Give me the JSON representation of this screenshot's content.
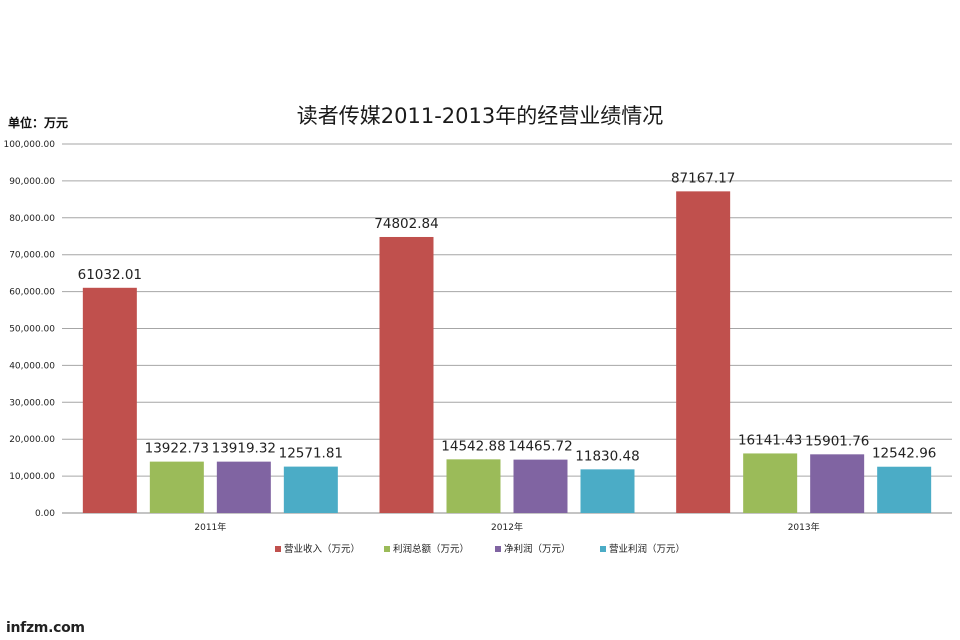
{
  "watermark": "infzm.com",
  "chart_data": {
    "type": "bar",
    "title": "读者传媒2011-2013年的经营业绩情况",
    "unit_label": "单位：万元",
    "categories": [
      "2011年",
      "2012年",
      "2013年"
    ],
    "series": [
      {
        "name": "营业收入（万元）",
        "color": "#c0504d",
        "values": [
          61032.01,
          74802.84,
          87167.17
        ],
        "labels": [
          "61032.01",
          "74802.84",
          "87167.17"
        ]
      },
      {
        "name": "利润总额（万元）",
        "color": "#9bbb59",
        "values": [
          13922.73,
          14542.88,
          16141.43
        ],
        "labels": [
          "13922.73",
          "14542.88",
          "16141.43"
        ]
      },
      {
        "name": "净利润（万元）",
        "color": "#8064a2",
        "values": [
          13919.32,
          14465.72,
          15901.76
        ],
        "labels": [
          "13919.32",
          "14465.72",
          "15901.76"
        ]
      },
      {
        "name": "营业利润（万元）",
        "color": "#4bacc6",
        "values": [
          12571.81,
          11830.48,
          12542.96
        ],
        "labels": [
          "12571.81",
          "11830.48",
          "12542.96"
        ]
      }
    ],
    "ylim": [
      0,
      100000
    ],
    "yticks": [
      0,
      10000,
      20000,
      30000,
      40000,
      50000,
      60000,
      70000,
      80000,
      90000,
      100000
    ],
    "ytick_labels": [
      "0.00",
      "10,000.00",
      "20,000.00",
      "30,000.00",
      "40,000.00",
      "50,000.00",
      "60,000.00",
      "70,000.00",
      "80,000.00",
      "90,000.00",
      "100,000.00"
    ],
    "grid": true,
    "legend_position": "bottom"
  }
}
